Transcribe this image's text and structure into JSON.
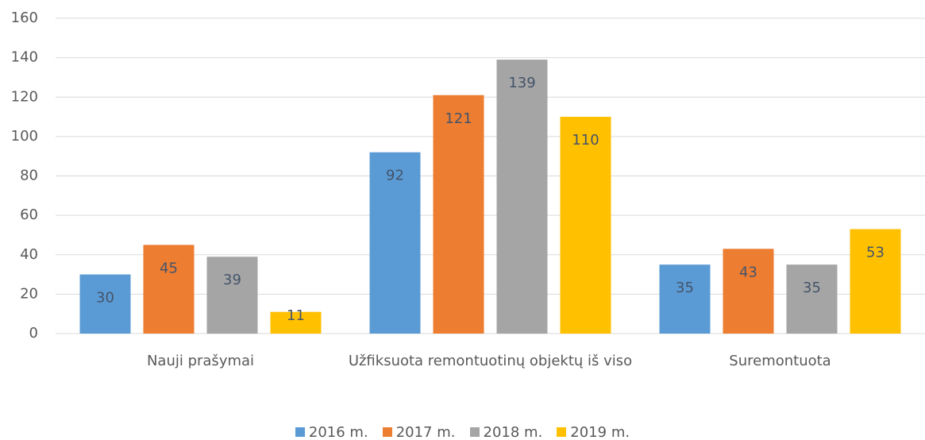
{
  "chart_data": {
    "type": "bar",
    "categories": [
      "Nauji prašymai",
      "Užfiksuota remontuotinų objektų iš viso",
      "Suremontuota"
    ],
    "series": [
      {
        "name": "2016 m.",
        "color": "#5b9bd5",
        "values": [
          30,
          92,
          35
        ]
      },
      {
        "name": "2017 m.",
        "color": "#ed7d31",
        "values": [
          45,
          121,
          43
        ]
      },
      {
        "name": "2018 m.",
        "color": "#a5a5a5",
        "values": [
          39,
          139,
          35
        ]
      },
      {
        "name": "2019 m.",
        "color": "#ffc000",
        "values": [
          11,
          110,
          53
        ]
      }
    ],
    "ylim": [
      0,
      160
    ],
    "yticks": [
      0,
      20,
      40,
      60,
      80,
      100,
      120,
      140,
      160
    ],
    "grid": true,
    "legend": "bottom"
  }
}
